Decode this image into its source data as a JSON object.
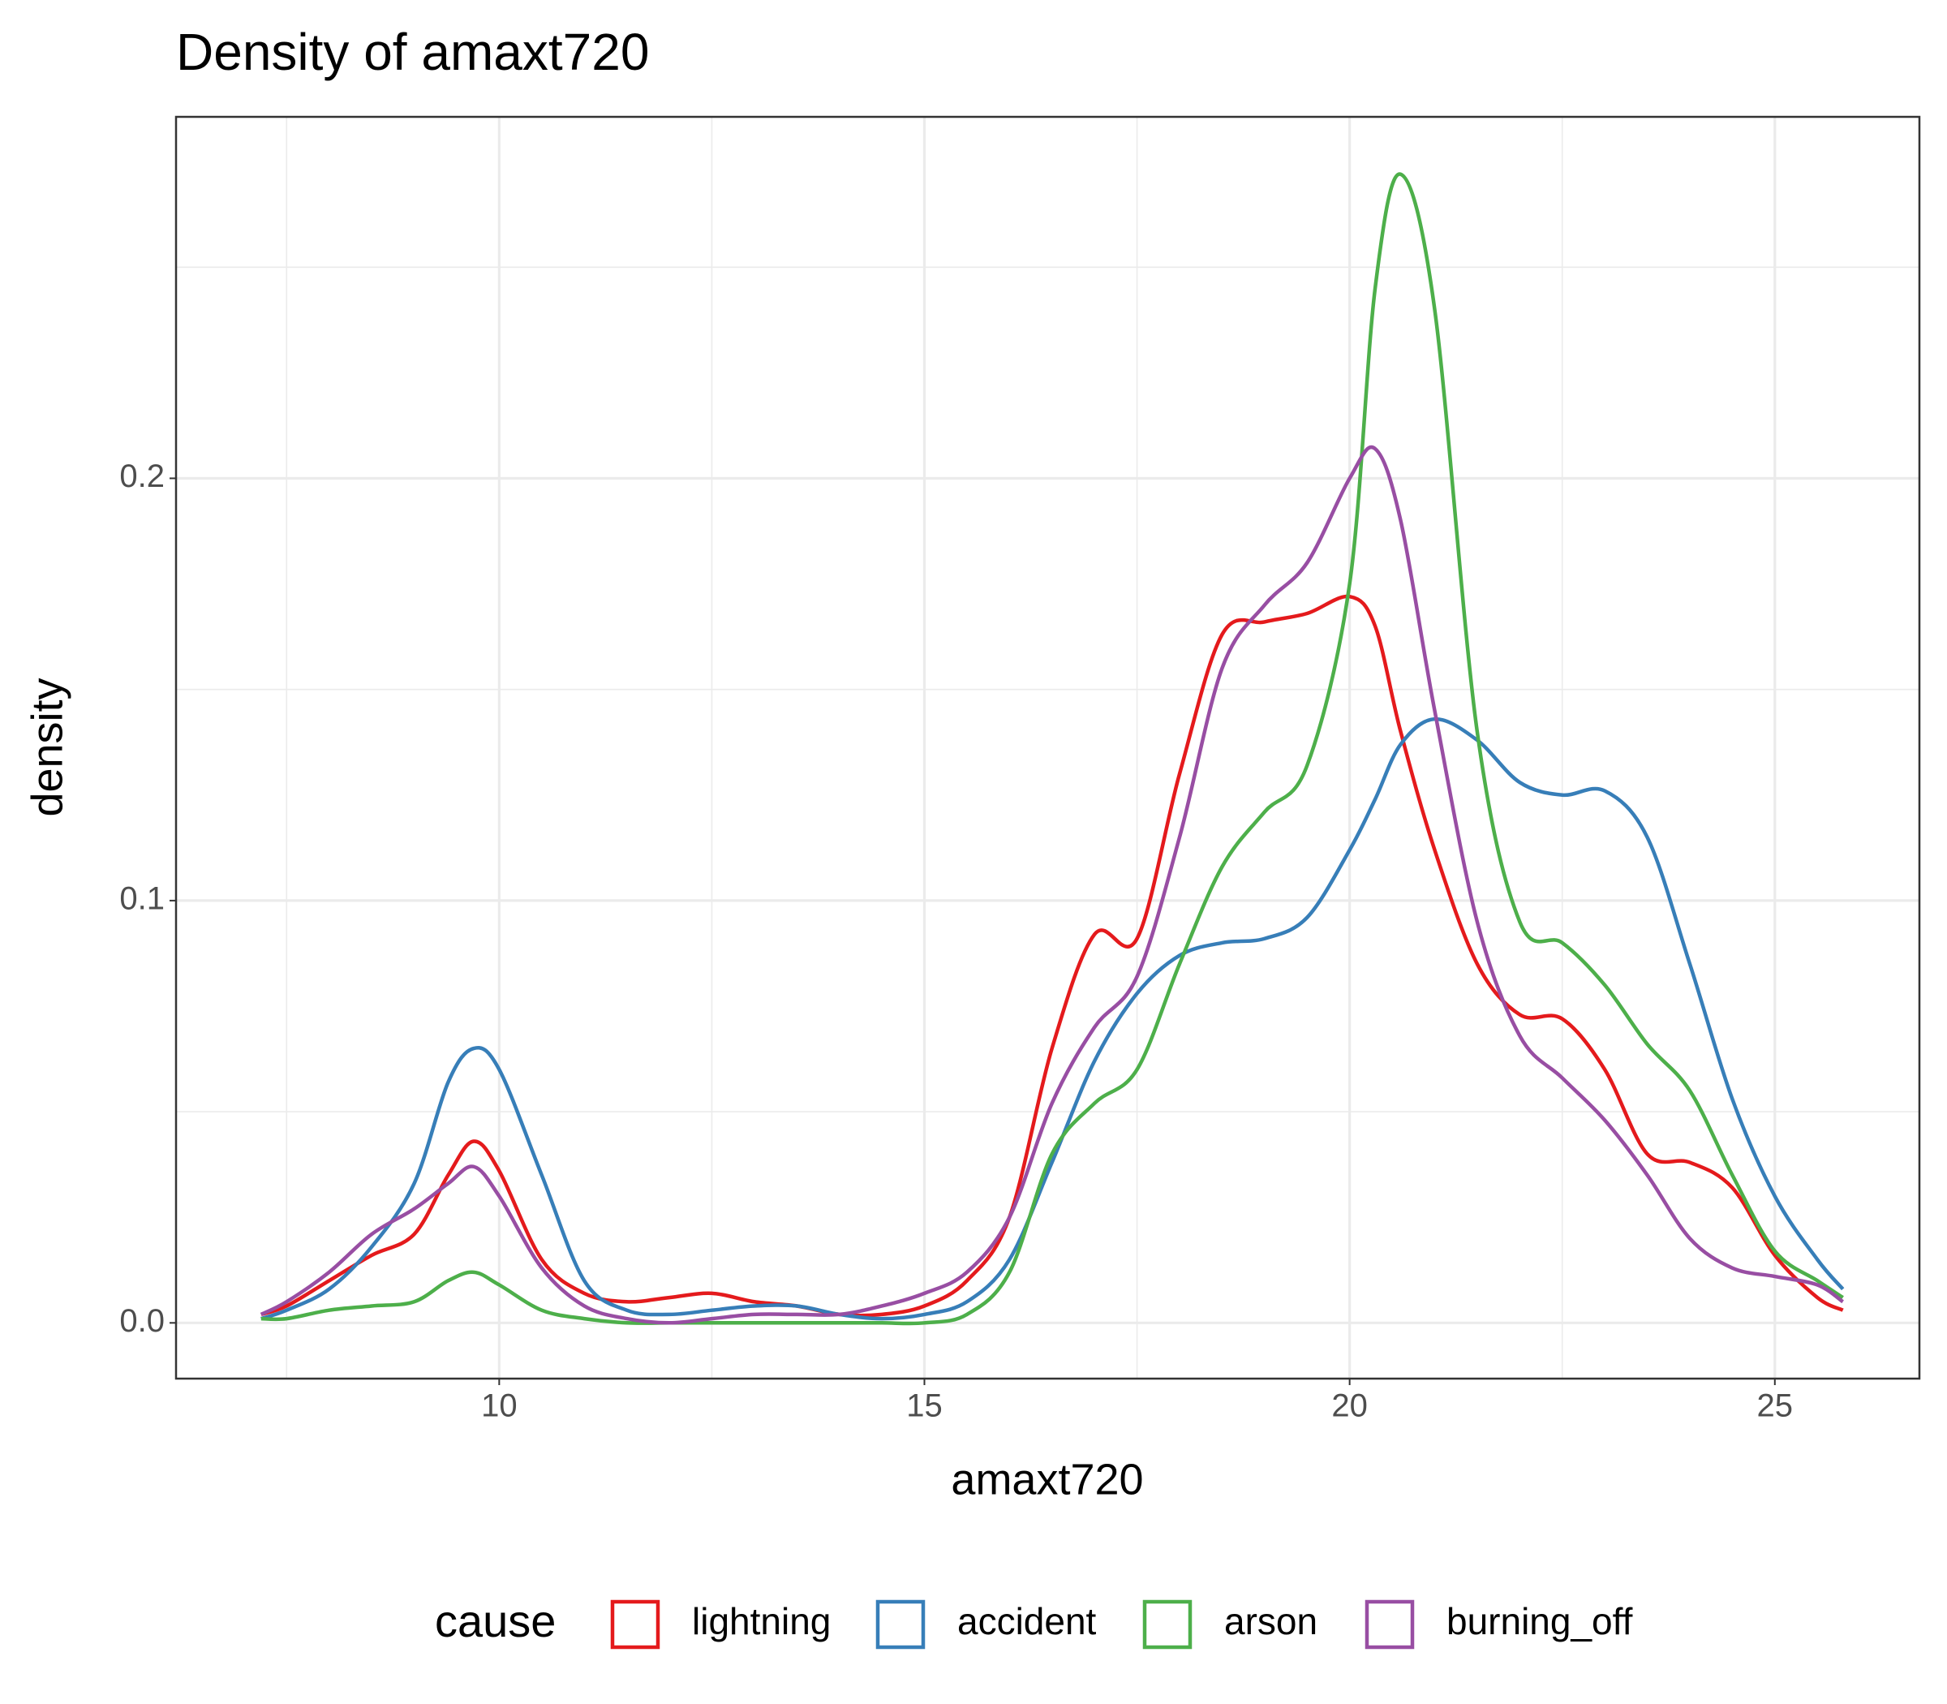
{
  "chart_data": {
    "type": "line",
    "title": "Density of amaxt720",
    "x_label": "amaxt720",
    "y_label": "density",
    "legend_title": "cause",
    "legend_position": "bottom",
    "grid": true,
    "x": [
      7.2,
      7.5,
      8,
      8.5,
      9,
      9.4,
      9.7,
      10,
      10.5,
      11,
      11.5,
      12,
      12.5,
      13,
      13.5,
      14,
      14.5,
      15,
      15.5,
      16,
      16.5,
      17,
      17.5,
      18,
      18.5,
      19,
      19.5,
      20,
      20.3,
      20.6,
      21,
      21.5,
      22,
      22.5,
      23,
      23.5,
      24,
      24.5,
      25,
      25.5,
      25.8
    ],
    "series": [
      {
        "name": "lightning",
        "color": "#e41a1c",
        "values": [
          0.002,
          0.004,
          0.01,
          0.016,
          0.021,
          0.035,
          0.043,
          0.036,
          0.015,
          0.007,
          0.005,
          0.006,
          0.007,
          0.005,
          0.004,
          0.002,
          0.002,
          0.004,
          0.01,
          0.025,
          0.065,
          0.092,
          0.091,
          0.13,
          0.163,
          0.166,
          0.168,
          0.172,
          0.165,
          0.14,
          0.112,
          0.085,
          0.073,
          0.072,
          0.06,
          0.04,
          0.038,
          0.032,
          0.016,
          0.006,
          0.003
        ]
      },
      {
        "name": "accident",
        "color": "#377eb8",
        "values": [
          0.001,
          0.003,
          0.008,
          0.018,
          0.033,
          0.057,
          0.065,
          0.06,
          0.035,
          0.01,
          0.003,
          0.002,
          0.003,
          0.004,
          0.004,
          0.002,
          0.001,
          0.002,
          0.005,
          0.015,
          0.038,
          0.062,
          0.078,
          0.087,
          0.09,
          0.091,
          0.096,
          0.112,
          0.124,
          0.137,
          0.143,
          0.138,
          0.128,
          0.125,
          0.126,
          0.115,
          0.085,
          0.053,
          0.03,
          0.015,
          0.008
        ]
      },
      {
        "name": "arson",
        "color": "#4daf4a",
        "values": [
          0.001,
          0.001,
          0.003,
          0.004,
          0.005,
          0.01,
          0.012,
          0.009,
          0.003,
          0.001,
          0.0,
          0.0,
          0.0,
          0.0,
          0.0,
          0.0,
          0.0,
          0.0,
          0.002,
          0.012,
          0.04,
          0.052,
          0.06,
          0.085,
          0.108,
          0.121,
          0.132,
          0.175,
          0.245,
          0.272,
          0.24,
          0.14,
          0.095,
          0.09,
          0.08,
          0.066,
          0.055,
          0.035,
          0.017,
          0.01,
          0.006
        ]
      },
      {
        "name": "burning_off",
        "color": "#984ea3",
        "values": [
          0.002,
          0.005,
          0.012,
          0.021,
          0.027,
          0.033,
          0.037,
          0.03,
          0.013,
          0.004,
          0.001,
          0.0,
          0.001,
          0.002,
          0.002,
          0.002,
          0.004,
          0.007,
          0.012,
          0.025,
          0.052,
          0.07,
          0.082,
          0.115,
          0.155,
          0.17,
          0.18,
          0.2,
          0.207,
          0.19,
          0.145,
          0.095,
          0.068,
          0.058,
          0.048,
          0.035,
          0.02,
          0.013,
          0.011,
          0.009,
          0.005
        ]
      }
    ],
    "xlim": [
      6.2,
      26.7
    ],
    "ylim": [
      -0.0132,
      0.2856
    ],
    "xticks": [
      10,
      15,
      20,
      25
    ],
    "yticks": [
      {
        "value": 0,
        "label": "0.0"
      },
      {
        "value": 0.1,
        "label": "0.1"
      },
      {
        "value": 0.2,
        "label": "0.2"
      }
    ],
    "x_minor_grid": [
      7.5,
      12.5,
      17.5,
      22.5
    ],
    "y_minor_grid": [
      0.05,
      0.15,
      0.25
    ]
  }
}
